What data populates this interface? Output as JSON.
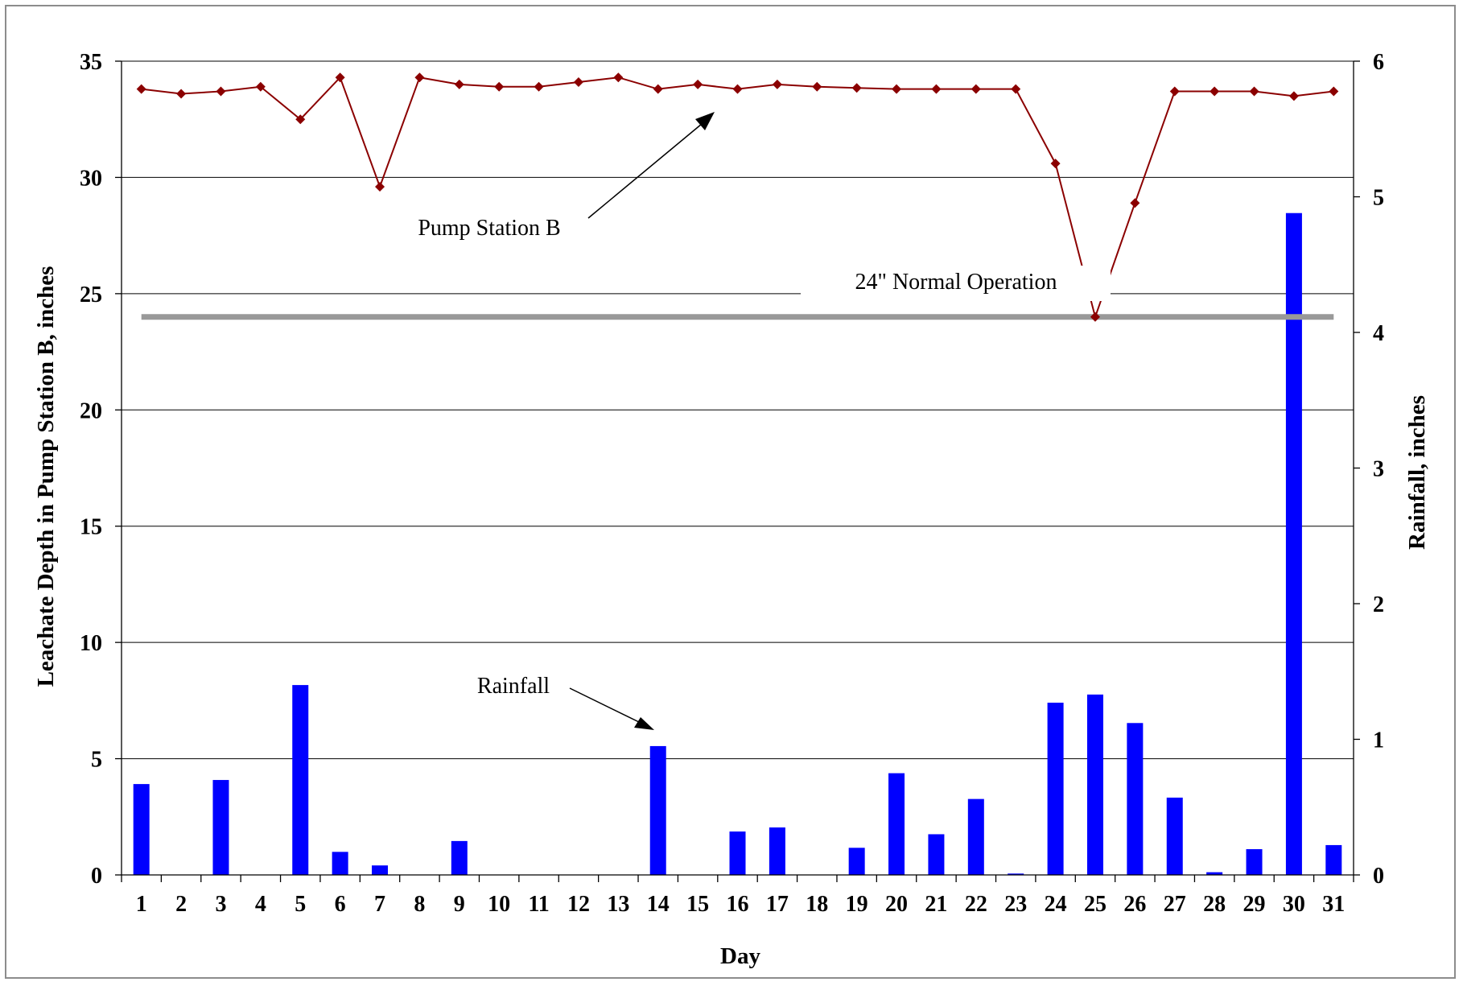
{
  "chart_data": {
    "type": "bar",
    "xlabel": "Day",
    "ylabel_left": "Leachate Depth in Pump Station B, inches",
    "ylabel_right": "Rainfall, inches",
    "categories": [
      "1",
      "2",
      "3",
      "4",
      "5",
      "6",
      "7",
      "8",
      "9",
      "10",
      "11",
      "12",
      "13",
      "14",
      "15",
      "16",
      "17",
      "18",
      "19",
      "20",
      "21",
      "22",
      "23",
      "24",
      "25",
      "26",
      "27",
      "28",
      "29",
      "30",
      "31"
    ],
    "y_left_lim": [
      0,
      35
    ],
    "y_left_ticks": [
      0,
      5,
      10,
      15,
      20,
      25,
      30,
      35
    ],
    "y_right_lim": [
      0,
      6
    ],
    "y_right_ticks": [
      0,
      1,
      2,
      3,
      4,
      5,
      6
    ],
    "grid": true,
    "series": [
      {
        "name": "Rainfall",
        "type": "bar",
        "axis": "right",
        "color": "#0000ff",
        "values": [
          0.67,
          0,
          0.7,
          0,
          1.4,
          0.17,
          0.07,
          0,
          0.25,
          0,
          0,
          0,
          0,
          0.95,
          0,
          0.32,
          0.35,
          0,
          0.2,
          0.75,
          0.3,
          0.56,
          0.01,
          1.27,
          1.33,
          1.12,
          0.57,
          0.02,
          0.19,
          4.88,
          0.22
        ]
      },
      {
        "name": "Pump Station B",
        "type": "line",
        "axis": "left",
        "color": "#8b0000",
        "marker": "diamond",
        "values": [
          33.8,
          33.6,
          33.7,
          33.9,
          32.5,
          34.3,
          29.6,
          34.3,
          34.0,
          33.9,
          33.9,
          34.1,
          34.3,
          33.8,
          34.0,
          33.8,
          34.0,
          33.9,
          33.85,
          33.8,
          33.8,
          33.8,
          33.8,
          30.6,
          24.0,
          28.9,
          33.7,
          33.7,
          33.7,
          33.5,
          33.7
        ]
      }
    ],
    "reference_line": {
      "label": "24\" Normal Operation",
      "value": 24,
      "axis": "left",
      "color": "#999999",
      "from": "1",
      "to": "31"
    },
    "annotations": [
      {
        "text": "Pump Station B",
        "points_to": "line"
      },
      {
        "text": "Rainfall",
        "points_to": "bar"
      }
    ]
  }
}
